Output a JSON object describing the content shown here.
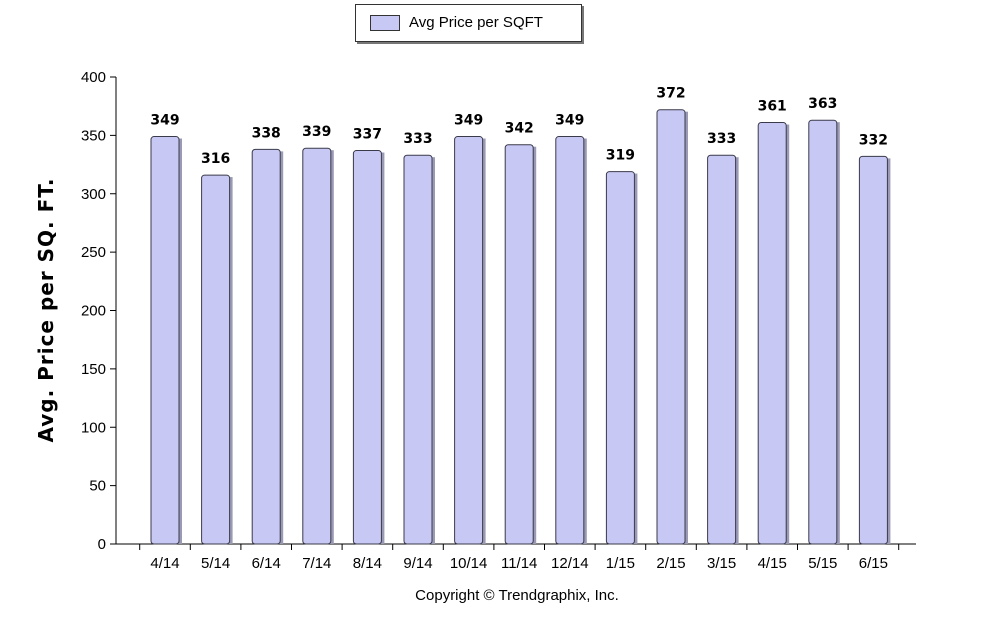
{
  "legend": {
    "label": "Avg Price per SQFT"
  },
  "copyright": "Copyright © Trendgraphix, Inc.",
  "colors": {
    "bar_fill": "#c8c8f5",
    "bar_stroke": "#3a3a4a",
    "bar_shadow": "#9a9ab5"
  },
  "chart_data": {
    "type": "bar",
    "title": "",
    "xlabel": "",
    "ylabel": "Avg. Price per SQ. FT.",
    "ylim": [
      0,
      400
    ],
    "yticks": [
      0,
      50,
      100,
      150,
      200,
      250,
      300,
      350,
      400
    ],
    "categories": [
      "4/14",
      "5/14",
      "6/14",
      "7/14",
      "8/14",
      "9/14",
      "10/14",
      "11/14",
      "12/14",
      "1/15",
      "2/15",
      "3/15",
      "4/15",
      "5/15",
      "6/15"
    ],
    "series": [
      {
        "name": "Avg Price per SQFT",
        "values": [
          349,
          316,
          338,
          339,
          337,
          333,
          349,
          342,
          349,
          319,
          372,
          333,
          361,
          363,
          332
        ]
      }
    ],
    "data_labels": true,
    "legend_position": "top-center",
    "grid": false
  }
}
